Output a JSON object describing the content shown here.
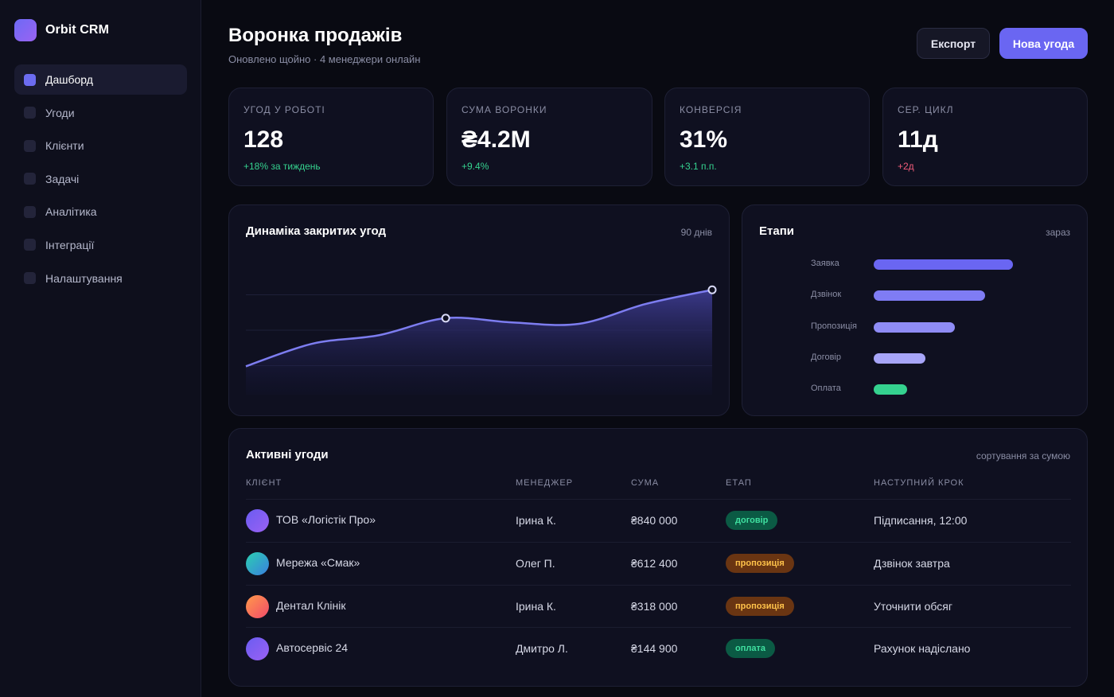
{
  "app": {
    "name": "Orbit CRM"
  },
  "sidebar": {
    "items": [
      {
        "label": "Дашборд",
        "active": true
      },
      {
        "label": "Угоди"
      },
      {
        "label": "Клієнти"
      },
      {
        "label": "Задачі"
      },
      {
        "label": "Аналітика"
      },
      {
        "label": "Інтеграції"
      },
      {
        "label": "Налаштування"
      }
    ]
  },
  "header": {
    "title": "Воронка продажів",
    "subtitle": "Оновлено щойно · 4 менеджери онлайн",
    "export_label": "Експорт",
    "new_label": "Нова угода"
  },
  "kpis": [
    {
      "label": "УГОД У РОБОТІ",
      "value": "128",
      "delta": "+18% за тиждень",
      "trend": "up"
    },
    {
      "label": "СУМА ВОРОНКИ",
      "value": "₴4.2M",
      "delta": "+9.4%",
      "trend": "up"
    },
    {
      "label": "КОНВЕРСІЯ",
      "value": "31%",
      "delta": "+3.1 п.п.",
      "trend": "up"
    },
    {
      "label": "СЕР. ЦИКЛ",
      "value": "11д",
      "delta": "+2д",
      "trend": "down"
    }
  ],
  "dynamics": {
    "title": "Динаміка закритих угод",
    "period": "90 днів",
    "colors": {
      "line": "#7d7df0",
      "fill": "#3b3a8a"
    }
  },
  "chart_data": {
    "type": "area",
    "title": "Динаміка закритих угод",
    "x": [
      0,
      1,
      2,
      3,
      4,
      5,
      6,
      7
    ],
    "values": [
      20,
      36,
      42,
      54,
      51,
      50,
      64,
      74
    ],
    "ylim": [
      0,
      100
    ],
    "grid": true,
    "highlighted_points": [
      3,
      7
    ]
  },
  "stages": {
    "title": "Етапи",
    "meta": "зараз",
    "items": [
      {
        "label": "Заявка",
        "value": 100,
        "color": "#6a66f2"
      },
      {
        "label": "Дзвінок",
        "value": 80,
        "color": "#7f7cf4"
      },
      {
        "label": "Пропозиція",
        "value": 58,
        "color": "#8f8cf6"
      },
      {
        "label": "Договір",
        "value": 37,
        "color": "#a7a5f8"
      },
      {
        "label": "Оплата",
        "value": 24,
        "color": "#35d28f"
      }
    ]
  },
  "deals": {
    "title": "Активні угоди",
    "sort_label": "сортування за сумою",
    "columns": [
      "КЛІЄНТ",
      "МЕНЕДЖЕР",
      "СУМА",
      "ЕТАП",
      "НАСТУПНИЙ КРОК"
    ],
    "rows": [
      {
        "client": "ТОВ «Логістік Про»",
        "manager": "Ірина К.",
        "amount": "₴840 000",
        "stage": "договір",
        "next": "Підписання, 12:00",
        "avatar_from": "#6a5cf2",
        "avatar_to": "#9b61f3",
        "badge_bg": "#0b5a44",
        "badge_fg": "#3fe0a0"
      },
      {
        "client": "Мережа «Смак»",
        "manager": "Олег П.",
        "amount": "₴612 400",
        "stage": "пропозиція",
        "next": "Дзвінок завтра",
        "avatar_from": "#2bd0b0",
        "avatar_to": "#3a7fe0",
        "badge_bg": "#6a3512",
        "badge_fg": "#ffc24a"
      },
      {
        "client": "Дентал Клінік",
        "manager": "Ірина К.",
        "amount": "₴318 000",
        "stage": "пропозиція",
        "next": "Уточнити обсяг",
        "avatar_from": "#ff9a4a",
        "avatar_to": "#f24a6a",
        "badge_bg": "#6a3512",
        "badge_fg": "#ffc24a"
      },
      {
        "client": "Автосервіс 24",
        "manager": "Дмитро Л.",
        "amount": "₴144 900",
        "stage": "оплата",
        "next": "Рахунок надіслано",
        "avatar_from": "#6a5cf2",
        "avatar_to": "#9b61f3",
        "badge_bg": "#0b5a44",
        "badge_fg": "#3fe0a0"
      }
    ]
  }
}
